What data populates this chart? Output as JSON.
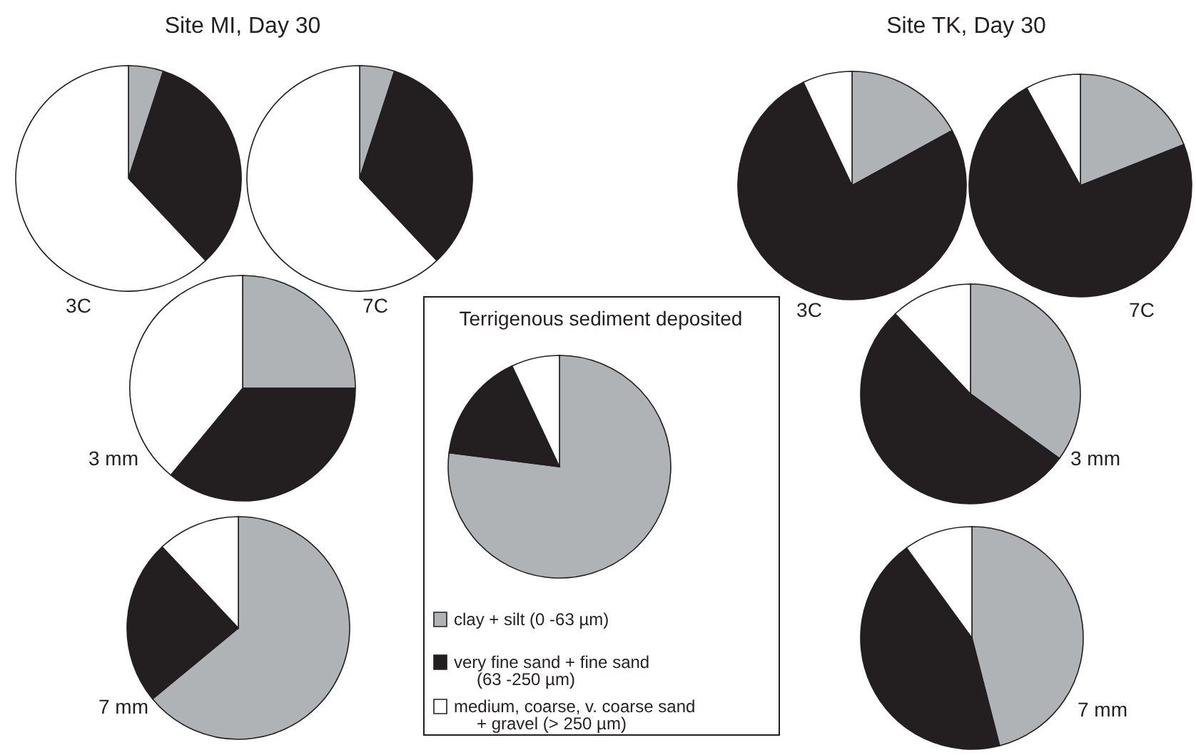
{
  "chart_data": [
    {
      "type": "pie",
      "title": "3C",
      "annotations": [
        "Site MI, Day 30"
      ],
      "categories": [
        null,
        null,
        null
      ],
      "values": [
        5,
        33,
        62
      ],
      "colors": [
        "#b0b3b5",
        "#231f20",
        "#ffffff"
      ]
    },
    {
      "type": "pie",
      "title": "7C",
      "categories": [
        null,
        null,
        null
      ],
      "values": [
        5,
        33,
        62
      ],
      "colors": [
        "#b0b3b5",
        "#231f20",
        "#ffffff"
      ]
    },
    {
      "type": "pie",
      "title": "3 mm",
      "categories": [
        null,
        null,
        null
      ],
      "values": [
        25,
        36,
        39
      ],
      "colors": [
        "#b0b3b5",
        "#231f20",
        "#ffffff"
      ]
    },
    {
      "type": "pie",
      "title": "7 mm",
      "categories": [
        null,
        null,
        null
      ],
      "values": [
        64,
        24,
        12
      ],
      "colors": [
        "#b0b3b5",
        "#231f20",
        "#ffffff"
      ]
    },
    {
      "type": "pie",
      "title": "Terrigenous sediment deposited",
      "legend": "bottom",
      "categories": [
        "clay + silt (0 -63 µm)",
        "very fine sand + fine sand\n(63 -250 µm)",
        "medium, coarse, v. coarse sand\n+ gravel  (> 250 µm)"
      ],
      "values": [
        77,
        16,
        7
      ],
      "colors": [
        "#b0b3b5",
        "#231f20",
        "#ffffff"
      ]
    },
    {
      "type": "pie",
      "title": "3C",
      "annotations": [
        "Site TK, Day 30"
      ],
      "categories": [
        null,
        null,
        null
      ],
      "values": [
        17,
        76,
        7
      ],
      "colors": [
        "#b0b3b5",
        "#231f20",
        "#ffffff"
      ]
    },
    {
      "type": "pie",
      "title": "7C",
      "categories": [
        null,
        null,
        null
      ],
      "values": [
        19,
        73,
        8
      ],
      "colors": [
        "#b0b3b5",
        "#231f20",
        "#ffffff"
      ]
    },
    {
      "type": "pie",
      "title": "3 mm",
      "categories": [
        null,
        null,
        null
      ],
      "values": [
        35,
        53,
        12
      ],
      "colors": [
        "#b0b3b5",
        "#231f20",
        "#ffffff"
      ]
    },
    {
      "type": "pie",
      "title": "7 mm",
      "categories": [
        null,
        null,
        null
      ],
      "values": [
        46,
        44,
        10
      ],
      "colors": [
        "#b0b3b5",
        "#231f20",
        "#ffffff"
      ]
    }
  ]
}
